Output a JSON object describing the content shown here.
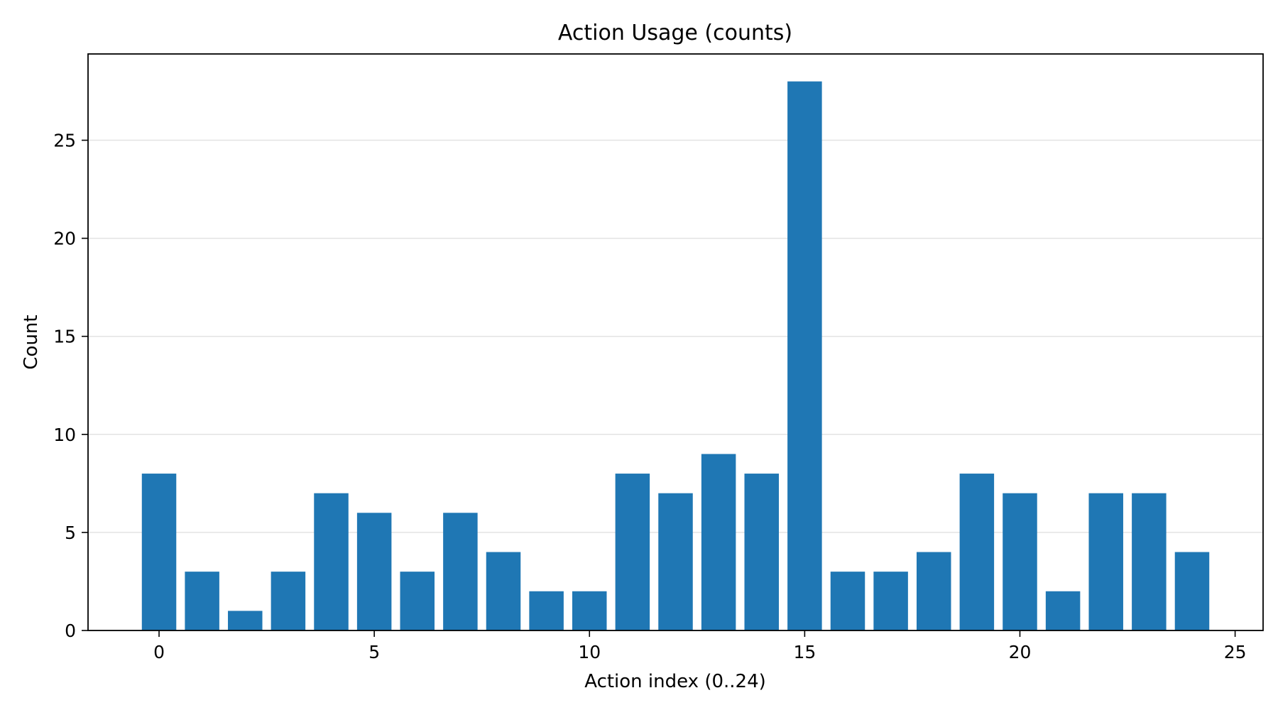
{
  "chart_data": {
    "type": "bar",
    "title": "Action Usage (counts)",
    "xlabel": "Action index (0..24)",
    "ylabel": "Count",
    "x": [
      0,
      1,
      2,
      3,
      4,
      5,
      6,
      7,
      8,
      9,
      10,
      11,
      12,
      13,
      14,
      15,
      16,
      17,
      18,
      19,
      20,
      21,
      22,
      23,
      24
    ],
    "values": [
      8,
      3,
      1,
      3,
      7,
      6,
      3,
      6,
      4,
      2,
      2,
      8,
      7,
      9,
      8,
      28,
      3,
      3,
      4,
      8,
      7,
      2,
      7,
      7,
      4
    ],
    "xlim": [
      -1.65,
      25.65
    ],
    "ylim": [
      0,
      29.4
    ],
    "xticks": [
      0,
      5,
      10,
      15,
      20,
      25
    ],
    "yticks": [
      0,
      5,
      10,
      15,
      20,
      25
    ],
    "grid": "horizontal",
    "bar_color": "#1f77b4",
    "grid_color": "#e3e3e3",
    "axis_color": "#000000"
  }
}
